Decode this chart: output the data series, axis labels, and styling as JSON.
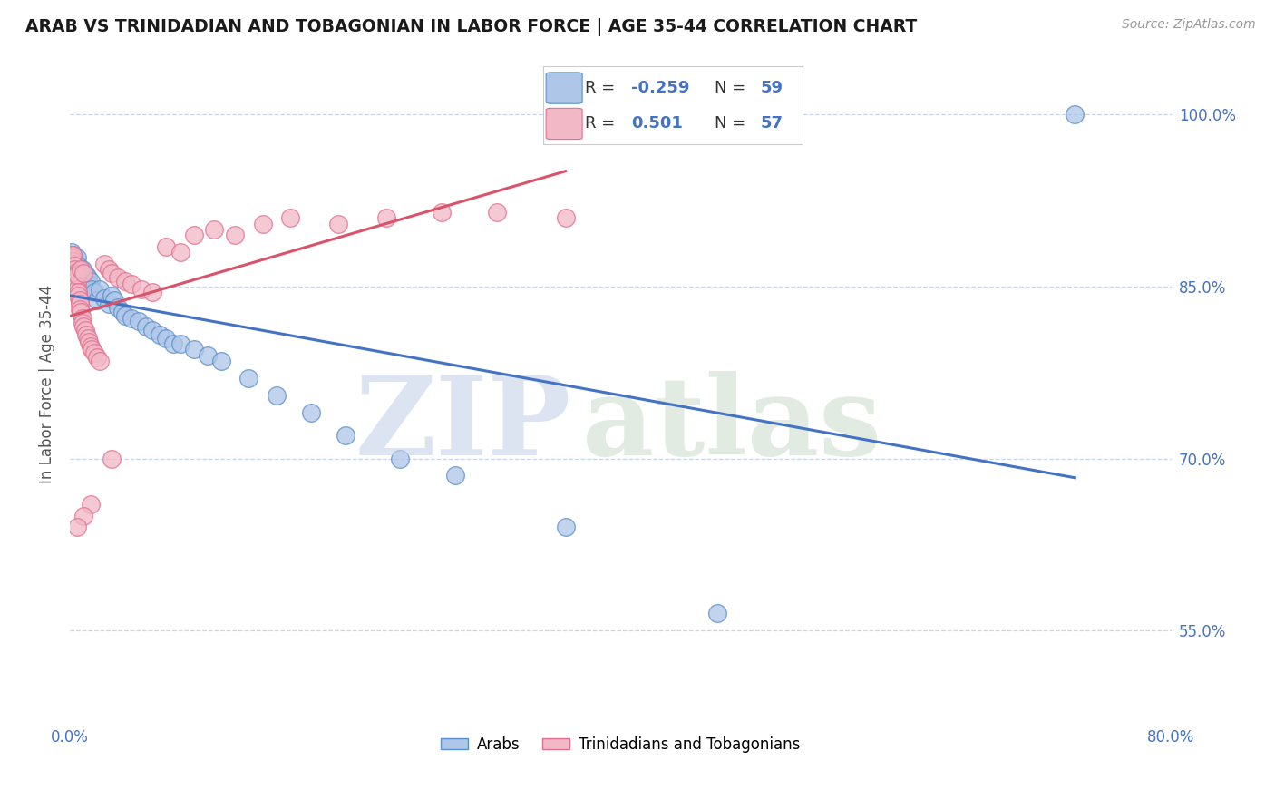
{
  "title": "ARAB VS TRINIDADIAN AND TOBAGONIAN IN LABOR FORCE | AGE 35-44 CORRELATION CHART",
  "source": "Source: ZipAtlas.com",
  "ylabel": "In Labor Force | Age 35-44",
  "xlim": [
    0.0,
    0.8
  ],
  "ylim": [
    0.47,
    1.06
  ],
  "xticks": [
    0.0,
    0.1,
    0.2,
    0.3,
    0.4,
    0.5,
    0.6,
    0.7,
    0.8
  ],
  "xticklabels": [
    "0.0%",
    "",
    "",
    "",
    "",
    "",
    "",
    "",
    "80.0%"
  ],
  "yticks": [
    0.55,
    0.7,
    0.85,
    1.0
  ],
  "yticklabels": [
    "55.0%",
    "70.0%",
    "85.0%",
    "100.0%"
  ],
  "arab_color": "#aec6e8",
  "trin_color": "#f2b8c6",
  "arab_edge_color": "#5b8fc9",
  "trin_edge_color": "#e07090",
  "arab_line_color": "#4472c4",
  "trin_line_color": "#d9536a",
  "background_color": "#ffffff",
  "grid_color": "#c8d4e8",
  "arab_x": [
    0.001,
    0.001,
    0.002,
    0.002,
    0.003,
    0.003,
    0.004,
    0.004,
    0.005,
    0.005,
    0.005,
    0.006,
    0.006,
    0.006,
    0.007,
    0.007,
    0.008,
    0.008,
    0.008,
    0.009,
    0.009,
    0.01,
    0.01,
    0.011,
    0.012,
    0.013,
    0.014,
    0.015,
    0.016,
    0.018,
    0.02,
    0.022,
    0.025,
    0.028,
    0.03,
    0.032,
    0.035,
    0.038,
    0.04,
    0.045,
    0.05,
    0.055,
    0.06,
    0.065,
    0.07,
    0.075,
    0.08,
    0.09,
    0.1,
    0.11,
    0.13,
    0.15,
    0.175,
    0.2,
    0.24,
    0.28,
    0.36,
    0.47,
    0.73
  ],
  "arab_y": [
    0.88,
    0.876,
    0.878,
    0.874,
    0.875,
    0.872,
    0.87,
    0.87,
    0.868,
    0.865,
    0.875,
    0.862,
    0.86,
    0.868,
    0.858,
    0.855,
    0.852,
    0.86,
    0.856,
    0.852,
    0.865,
    0.85,
    0.855,
    0.848,
    0.86,
    0.858,
    0.852,
    0.855,
    0.848,
    0.845,
    0.838,
    0.848,
    0.84,
    0.835,
    0.842,
    0.838,
    0.832,
    0.828,
    0.825,
    0.822,
    0.82,
    0.815,
    0.812,
    0.808,
    0.805,
    0.8,
    0.8,
    0.795,
    0.79,
    0.785,
    0.77,
    0.755,
    0.74,
    0.72,
    0.7,
    0.685,
    0.64,
    0.565,
    1.0
  ],
  "trin_x": [
    0.001,
    0.001,
    0.002,
    0.002,
    0.002,
    0.003,
    0.003,
    0.004,
    0.004,
    0.004,
    0.005,
    0.005,
    0.005,
    0.006,
    0.006,
    0.007,
    0.007,
    0.007,
    0.008,
    0.008,
    0.009,
    0.009,
    0.01,
    0.01,
    0.011,
    0.012,
    0.013,
    0.014,
    0.015,
    0.016,
    0.018,
    0.02,
    0.022,
    0.025,
    0.028,
    0.03,
    0.035,
    0.04,
    0.045,
    0.052,
    0.06,
    0.07,
    0.08,
    0.09,
    0.105,
    0.12,
    0.14,
    0.16,
    0.195,
    0.23,
    0.27,
    0.31,
    0.36,
    0.03,
    0.015,
    0.01,
    0.005
  ],
  "trin_y": [
    0.878,
    0.875,
    0.872,
    0.87,
    0.878,
    0.868,
    0.865,
    0.862,
    0.86,
    0.855,
    0.852,
    0.848,
    0.86,
    0.845,
    0.842,
    0.838,
    0.835,
    0.83,
    0.828,
    0.865,
    0.822,
    0.818,
    0.815,
    0.862,
    0.812,
    0.808,
    0.805,
    0.802,
    0.798,
    0.795,
    0.792,
    0.788,
    0.785,
    0.87,
    0.865,
    0.862,
    0.858,
    0.855,
    0.852,
    0.848,
    0.845,
    0.885,
    0.88,
    0.895,
    0.9,
    0.895,
    0.905,
    0.91,
    0.905,
    0.91,
    0.915,
    0.915,
    0.91,
    0.7,
    0.66,
    0.65,
    0.64
  ]
}
